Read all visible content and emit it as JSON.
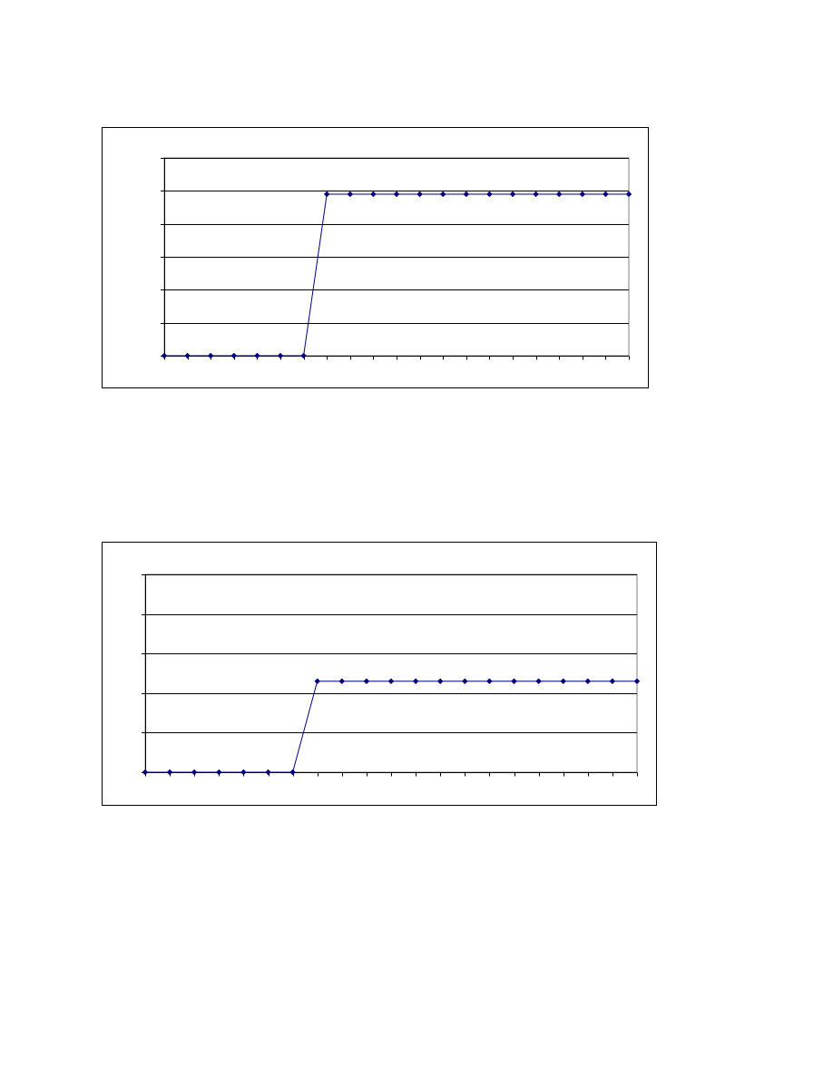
{
  "chart_data": [
    {
      "type": "line",
      "x": [
        1,
        2,
        3,
        4,
        5,
        6,
        7,
        8,
        9,
        10,
        11,
        12,
        13,
        14,
        15,
        16,
        17,
        18,
        19,
        20,
        21
      ],
      "series": [
        {
          "values": [
            0,
            0,
            0,
            0,
            0,
            0,
            0,
            0.98,
            0.98,
            0.98,
            0.98,
            0.98,
            0.98,
            0.98,
            0.98,
            0.98,
            0.98,
            0.98,
            0.98,
            0.98,
            0.98
          ],
          "color": "#000080",
          "marker": "diamond"
        }
      ],
      "ylim": [
        0,
        1.2
      ],
      "ygrid": [
        0.2,
        0.4,
        0.6,
        0.8,
        1.0,
        1.2
      ],
      "grid": true,
      "tick_labels_visible": false
    },
    {
      "type": "line",
      "x": [
        1,
        2,
        3,
        4,
        5,
        6,
        7,
        8,
        9,
        10,
        11,
        12,
        13,
        14,
        15,
        16,
        17,
        18,
        19,
        20,
        21
      ],
      "series": [
        {
          "values": [
            0,
            0,
            0,
            0,
            0,
            0,
            0,
            0.46,
            0.46,
            0.46,
            0.46,
            0.46,
            0.46,
            0.46,
            0.46,
            0.46,
            0.46,
            0.46,
            0.46,
            0.46,
            0.46
          ],
          "color": "#000080",
          "marker": "diamond"
        }
      ],
      "ylim": [
        0,
        1.0
      ],
      "ygrid": [
        0.2,
        0.4,
        0.6,
        0.8,
        1.0
      ],
      "grid": true,
      "tick_labels_visible": false
    }
  ]
}
